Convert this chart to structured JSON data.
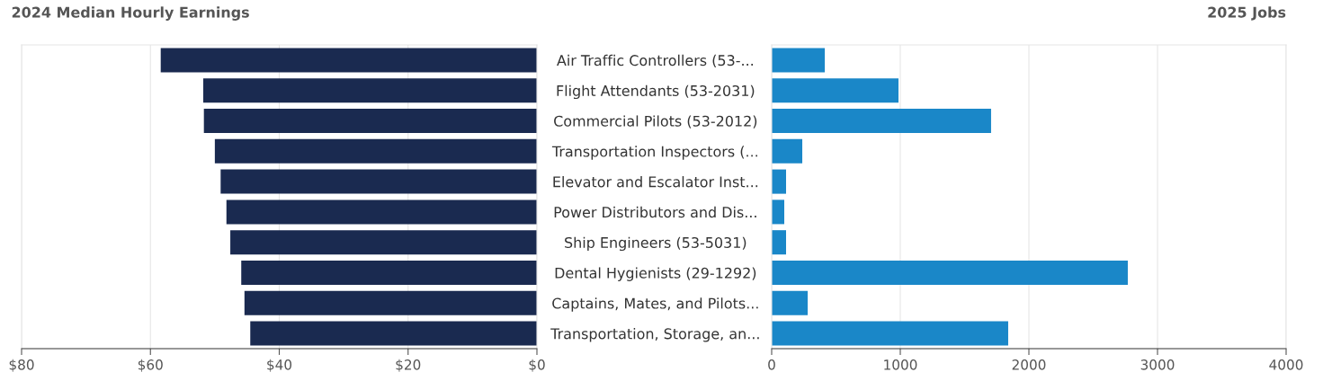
{
  "chart_data": [
    {
      "type": "bar",
      "orientation": "horizontal",
      "title": "2024 Median Hourly Earnings",
      "tick_labels": "x",
      "grid": "x",
      "categories": [
        null,
        null,
        null,
        null,
        null,
        null,
        null,
        null,
        null,
        null
      ],
      "values": [
        58.4,
        51.8,
        51.7,
        50.0,
        49.1,
        48.2,
        47.6,
        45.9,
        45.4,
        44.5
      ],
      "color": "#1a2a50",
      "xlim": [
        80,
        0
      ],
      "xticks": [
        {
          "value": 80,
          "label": "$80"
        },
        {
          "value": 60,
          "label": "$60"
        },
        {
          "value": 40,
          "label": "$40"
        },
        {
          "value": 20,
          "label": "$20"
        },
        {
          "value": 0,
          "label": "$0"
        }
      ]
    },
    {
      "type": "bar",
      "orientation": "horizontal",
      "title": "2025 Jobs",
      "grid": "x",
      "categories": [
        "Air Traffic Controllers (53-...",
        "Flight Attendants (53-2031)",
        "Commercial Pilots (53-2012)",
        "Transportation Inspectors (...",
        "Elevator and Escalator Inst...",
        "Power Distributors and Dis...",
        "Ship Engineers (53-5031)",
        "Dental Hygienists (29-1292)",
        "Captains, Mates, and Pilots...",
        "Transportation, Storage, an..."
      ],
      "values": [
        413,
        986,
        1706,
        238,
        112,
        98,
        112,
        2769,
        280,
        1839
      ],
      "color": "#1a87c8",
      "xlim": [
        0,
        4000
      ],
      "xticks": [
        0,
        1000,
        2000,
        3000,
        4000
      ]
    }
  ]
}
